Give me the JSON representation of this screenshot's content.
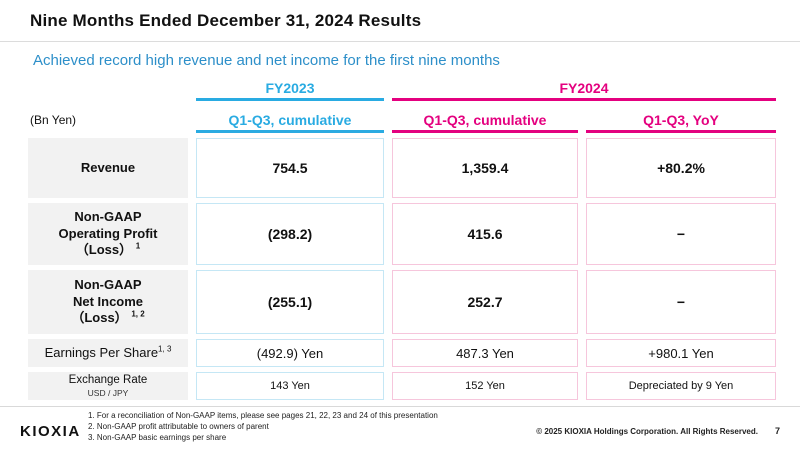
{
  "page": {
    "title": "Nine Months Ended December 31, 2024 Results",
    "subtitle": "Achieved record high revenue and net income for the first nine months"
  },
  "colors": {
    "cyan_accent": "#29abe2",
    "magenta_accent": "#e4007f",
    "subtitle_blue": "#2d8fc9",
    "label_background": "#f2f2f2",
    "cell_border_cyan": "#c5e7f5",
    "cell_border_pink": "#f6c6dc"
  },
  "table": {
    "unit_label": "(Bn Yen)",
    "group_headers": [
      {
        "label": "FY2023"
      },
      {
        "label": "FY2024"
      }
    ],
    "column_headers": [
      "Q1-Q3, cumulative",
      "Q1-Q3, cumulative",
      "Q1-Q3, YoY"
    ],
    "rows": [
      {
        "label": "Revenue",
        "values": [
          "754.5",
          "1,359.4",
          "+80.2%"
        ]
      },
      {
        "label_line1": "Non-GAAP",
        "label_line2": "Operating Profit",
        "label_line3": "（Loss）",
        "sup": "1",
        "values": [
          "(298.2)",
          "415.6",
          "−"
        ]
      },
      {
        "label_line1": "Non-GAAP",
        "label_line2": "Net Income",
        "label_line3": "（Loss）",
        "sup": "1, 2",
        "values": [
          "(255.1)",
          "252.7",
          "−"
        ]
      },
      {
        "label": "Earnings Per Share",
        "sup": "1, 3",
        "values": [
          "(492.9) Yen",
          "487.3 Yen",
          "+980.1 Yen"
        ]
      },
      {
        "label": "Exchange Rate",
        "sublabel": "USD / JPY",
        "values": [
          "143 Yen",
          "152 Yen",
          "Depreciated by 9 Yen"
        ]
      }
    ]
  },
  "footer": {
    "logo": "KIOXIA",
    "footnotes": [
      "1. For a reconciliation of Non-GAAP items, please see pages 21, 22, 23 and 24 of this presentation",
      "2. Non-GAAP profit attributable to owners of parent",
      "3. Non-GAAP basic earnings per share"
    ],
    "copyright": "© 2025 KIOXIA Holdings Corporation. All Rights Reserved.",
    "page_number": "7"
  }
}
